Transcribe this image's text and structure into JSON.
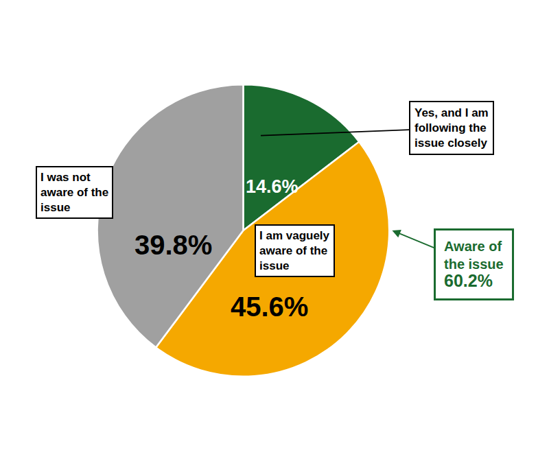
{
  "chart_data": {
    "type": "pie",
    "values": [
      14.6,
      45.6,
      39.8
    ],
    "value_labels": [
      "14.6%",
      "45.6%",
      "39.8%"
    ],
    "colors": [
      "#1a6b2f",
      "#f5a800",
      "#a0a0a0"
    ],
    "data_labels": true,
    "annotations": [
      "Yes, and I am\nfollowing the\nissue closely",
      "I am vaguely\naware of the\nissue",
      "I was not\naware of the\nissue",
      "Aware of\nthe issue\n60.2%"
    ]
  }
}
